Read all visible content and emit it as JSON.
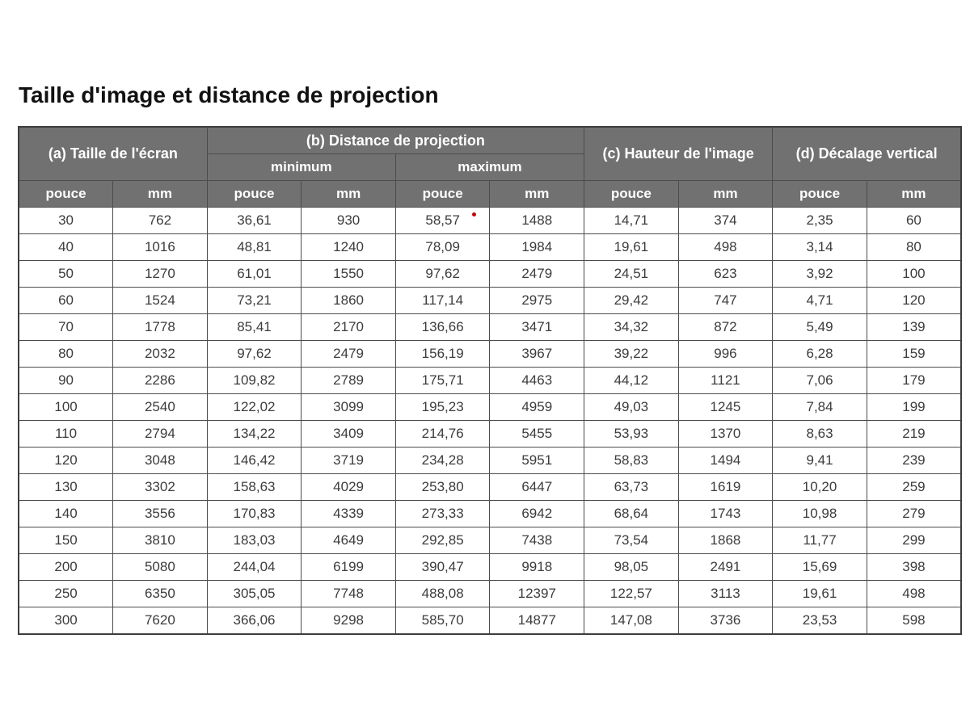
{
  "page": {
    "title": "Taille d'image et distance de projection"
  },
  "colors": {
    "header_bg": "#717171",
    "header_text": "#ffffff",
    "body_text": "#3c3c3c",
    "border": "#4c4c4c",
    "note_marker": "#cc0000"
  },
  "table": {
    "sections": {
      "a": "(a) Taille de l'écran",
      "b": "(b) Distance de projection",
      "b_min": "minimum",
      "b_max": "maximum",
      "c": "(c) Hauteur de l'image",
      "d": "(d) Décalage vertical"
    },
    "unit_headers": [
      "pouce",
      "mm",
      "pouce",
      "mm",
      "pouce",
      "mm",
      "pouce",
      "mm",
      "pouce",
      "mm"
    ],
    "note": {
      "row": 0,
      "col": 4,
      "color": "#cc0000"
    },
    "rows": [
      [
        "30",
        "762",
        "36,61",
        "930",
        "58,57",
        "1488",
        "14,71",
        "374",
        "2,35",
        "60"
      ],
      [
        "40",
        "1016",
        "48,81",
        "1240",
        "78,09",
        "1984",
        "19,61",
        "498",
        "3,14",
        "80"
      ],
      [
        "50",
        "1270",
        "61,01",
        "1550",
        "97,62",
        "2479",
        "24,51",
        "623",
        "3,92",
        "100"
      ],
      [
        "60",
        "1524",
        "73,21",
        "1860",
        "117,14",
        "2975",
        "29,42",
        "747",
        "4,71",
        "120"
      ],
      [
        "70",
        "1778",
        "85,41",
        "2170",
        "136,66",
        "3471",
        "34,32",
        "872",
        "5,49",
        "139"
      ],
      [
        "80",
        "2032",
        "97,62",
        "2479",
        "156,19",
        "3967",
        "39,22",
        "996",
        "6,28",
        "159"
      ],
      [
        "90",
        "2286",
        "109,82",
        "2789",
        "175,71",
        "4463",
        "44,12",
        "1121",
        "7,06",
        "179"
      ],
      [
        "100",
        "2540",
        "122,02",
        "3099",
        "195,23",
        "4959",
        "49,03",
        "1245",
        "7,84",
        "199"
      ],
      [
        "110",
        "2794",
        "134,22",
        "3409",
        "214,76",
        "5455",
        "53,93",
        "1370",
        "8,63",
        "219"
      ],
      [
        "120",
        "3048",
        "146,42",
        "3719",
        "234,28",
        "5951",
        "58,83",
        "1494",
        "9,41",
        "239"
      ],
      [
        "130",
        "3302",
        "158,63",
        "4029",
        "253,80",
        "6447",
        "63,73",
        "1619",
        "10,20",
        "259"
      ],
      [
        "140",
        "3556",
        "170,83",
        "4339",
        "273,33",
        "6942",
        "68,64",
        "1743",
        "10,98",
        "279"
      ],
      [
        "150",
        "3810",
        "183,03",
        "4649",
        "292,85",
        "7438",
        "73,54",
        "1868",
        "11,77",
        "299"
      ],
      [
        "200",
        "5080",
        "244,04",
        "6199",
        "390,47",
        "9918",
        "98,05",
        "2491",
        "15,69",
        "398"
      ],
      [
        "250",
        "6350",
        "305,05",
        "7748",
        "488,08",
        "12397",
        "122,57",
        "3113",
        "19,61",
        "498"
      ],
      [
        "300",
        "7620",
        "366,06",
        "9298",
        "585,70",
        "14877",
        "147,08",
        "3736",
        "23,53",
        "598"
      ]
    ]
  }
}
